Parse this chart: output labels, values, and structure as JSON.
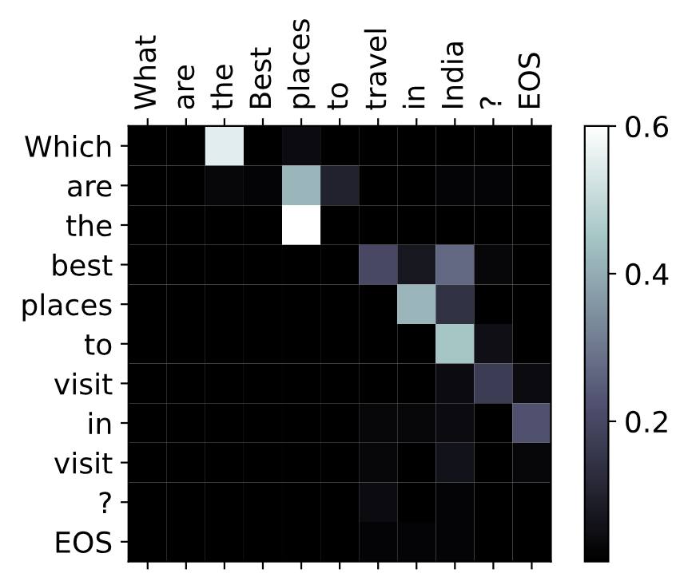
{
  "chart_data": {
    "type": "heatmap",
    "categories": [
      "What",
      "are",
      "the",
      "Best",
      "places",
      "to",
      "travel",
      "in",
      "India",
      "?",
      "EOS"
    ],
    "y_categories": [
      "Which",
      "are",
      "the",
      "best",
      "places",
      "to",
      "visit",
      "in",
      "visit",
      "?",
      "EOS"
    ],
    "cells": [
      [
        0.01,
        0.01,
        0.55,
        0.01,
        0.04,
        0.01,
        0.01,
        0.01,
        0.01,
        0.01,
        0.01
      ],
      [
        0.01,
        0.01,
        0.03,
        0.02,
        0.42,
        0.1,
        0.01,
        0.01,
        0.02,
        0.02,
        0.01
      ],
      [
        0.01,
        0.01,
        0.01,
        0.01,
        0.6,
        0.01,
        0.01,
        0.01,
        0.01,
        0.01,
        0.01
      ],
      [
        0.01,
        0.01,
        0.01,
        0.01,
        0.01,
        0.01,
        0.2,
        0.07,
        0.27,
        0.03,
        0.01
      ],
      [
        0.01,
        0.01,
        0.01,
        0.01,
        0.01,
        0.01,
        0.01,
        0.42,
        0.14,
        0.01,
        0.01
      ],
      [
        0.01,
        0.01,
        0.01,
        0.01,
        0.01,
        0.01,
        0.01,
        0.01,
        0.45,
        0.05,
        0.01
      ],
      [
        0.01,
        0.01,
        0.01,
        0.01,
        0.01,
        0.01,
        0.01,
        0.01,
        0.04,
        0.17,
        0.04
      ],
      [
        0.01,
        0.01,
        0.01,
        0.01,
        0.01,
        0.01,
        0.03,
        0.03,
        0.04,
        0.01,
        0.22
      ],
      [
        0.01,
        0.01,
        0.01,
        0.01,
        0.01,
        0.01,
        0.03,
        0.01,
        0.06,
        0.01,
        0.03
      ],
      [
        0.01,
        0.01,
        0.01,
        0.01,
        0.01,
        0.01,
        0.04,
        0.01,
        0.02,
        0.01,
        0.01
      ],
      [
        0.01,
        0.01,
        0.01,
        0.01,
        0.01,
        0.01,
        0.02,
        0.02,
        0.02,
        0.01,
        0.01
      ]
    ],
    "clim": [
      0.01,
      0.6
    ],
    "cticks": [
      0.2,
      0.4,
      0.6
    ]
  }
}
